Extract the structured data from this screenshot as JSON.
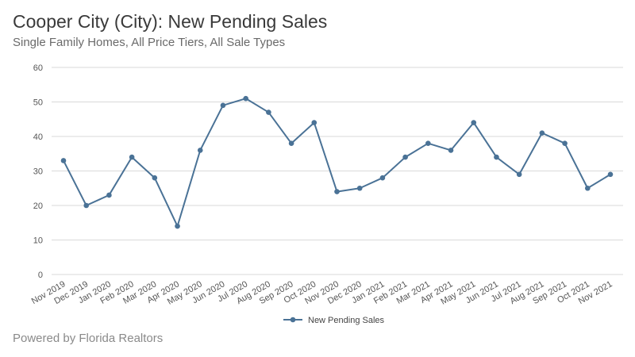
{
  "header": {
    "title": "Cooper City (City): New Pending Sales",
    "subtitle": "Single Family Homes, All Price Tiers, All Sale Types"
  },
  "footer": {
    "text": "Powered by Florida Realtors"
  },
  "colors": {
    "series": "#4a7296",
    "grid": "#d9d9d9",
    "axis_text": "#555555"
  },
  "chart_data": {
    "type": "line",
    "title": "Cooper City (City): New Pending Sales",
    "subtitle": "Single Family Homes, All Price Tiers, All Sale Types",
    "xlabel": "",
    "ylabel": "",
    "ylim": [
      0,
      60
    ],
    "yticks": [
      0,
      10,
      20,
      30,
      40,
      50,
      60
    ],
    "grid": true,
    "legend_position": "bottom",
    "categories": [
      "Nov 2019",
      "Dec 2019",
      "Jan 2020",
      "Feb 2020",
      "Mar 2020",
      "Apr 2020",
      "May 2020",
      "Jun 2020",
      "Jul 2020",
      "Aug 2020",
      "Sep 2020",
      "Oct 2020",
      "Nov 2020",
      "Dec 2020",
      "Jan 2021",
      "Feb 2021",
      "Mar 2021",
      "Apr 2021",
      "May 2021",
      "Jun 2021",
      "Jul 2021",
      "Aug 2021",
      "Sep 2021",
      "Oct 2021",
      "Nov 2021"
    ],
    "series": [
      {
        "name": "New Pending Sales",
        "color": "#4a7296",
        "values": [
          33,
          20,
          23,
          34,
          28,
          14,
          36,
          49,
          51,
          47,
          38,
          44,
          24,
          25,
          28,
          34,
          38,
          36,
          44,
          34,
          29,
          41,
          38,
          25,
          29
        ]
      }
    ]
  }
}
